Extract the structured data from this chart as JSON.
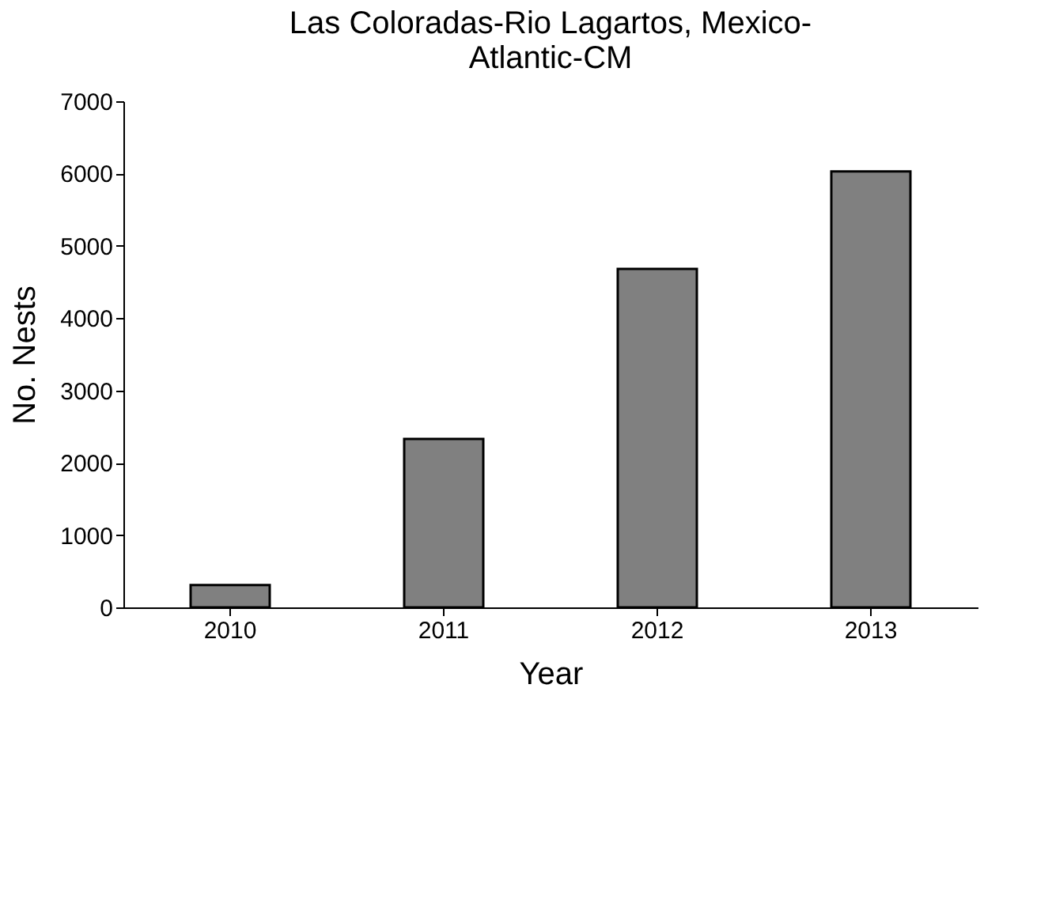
{
  "chart_data": {
    "type": "bar",
    "title": "Las Coloradas-Rio Lagartos, Mexico-\nAtlantic-CM",
    "xlabel": "Year",
    "ylabel": "No. Nests",
    "categories": [
      "2010",
      "2011",
      "2012",
      "2013"
    ],
    "values": [
      310,
      2330,
      4680,
      6030
    ],
    "color": "#808080",
    "ylim": [
      0,
      7000
    ],
    "yticks": [
      0,
      1000,
      2000,
      3000,
      4000,
      5000,
      6000,
      7000
    ],
    "grid": false
  }
}
